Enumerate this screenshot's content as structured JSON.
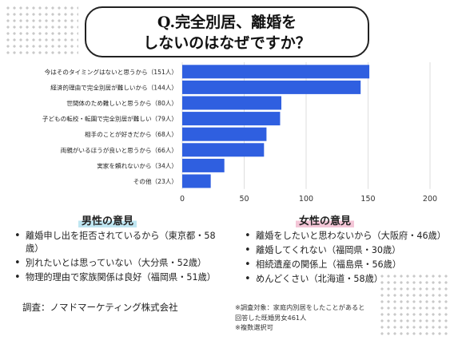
{
  "title": {
    "line1": "Q.完全別居、離婚を",
    "line2": "しないのはなぜですか？"
  },
  "chart_data": {
    "type": "bar",
    "orientation": "horizontal",
    "categories": [
      "今はそのタイミングはないと思うから（151人）",
      "経済的理由で完全別居が難しいから（144人）",
      "世間体のため難しいと思うから（80人）",
      "子どもの転校・転園で完全別居が難しい（79人）",
      "相手のことが好きだから（68人）",
      "両親がいるほうが良いと思うから（66人）",
      "実家を頼れないから（34人）",
      "その他（23人）"
    ],
    "values": [
      151,
      144,
      80,
      79,
      68,
      66,
      34,
      23
    ],
    "xlim": [
      0,
      200
    ],
    "xticks": [
      "0",
      "50",
      "100",
      "150",
      "200"
    ],
    "grid": true,
    "bar_color": "#2f5fe0"
  },
  "male": {
    "heading": "男性の意見",
    "items": [
      "離婚申し出を拒否されているから（東京都・58歳）",
      "別れたいとは思っていない（大分県・52歳）",
      "物理的理由で家族関係は良好（福岡県・51歳）"
    ]
  },
  "female": {
    "heading": "女性の意見",
    "items": [
      "離婚をしたいと思わないから（大阪府・46歳）",
      "離婚してくれない（福岡県・30歳）",
      "相続遺産の関係上（福島県・56歳）",
      "めんどくさい（北海道・58歳）"
    ]
  },
  "survey": "調査：ノマドマーケティング株式会社",
  "notes": [
    "※調査対象：家庭内別居をしたことがあると",
    "回答した既婚男女461人",
    "※複数選択可"
  ]
}
